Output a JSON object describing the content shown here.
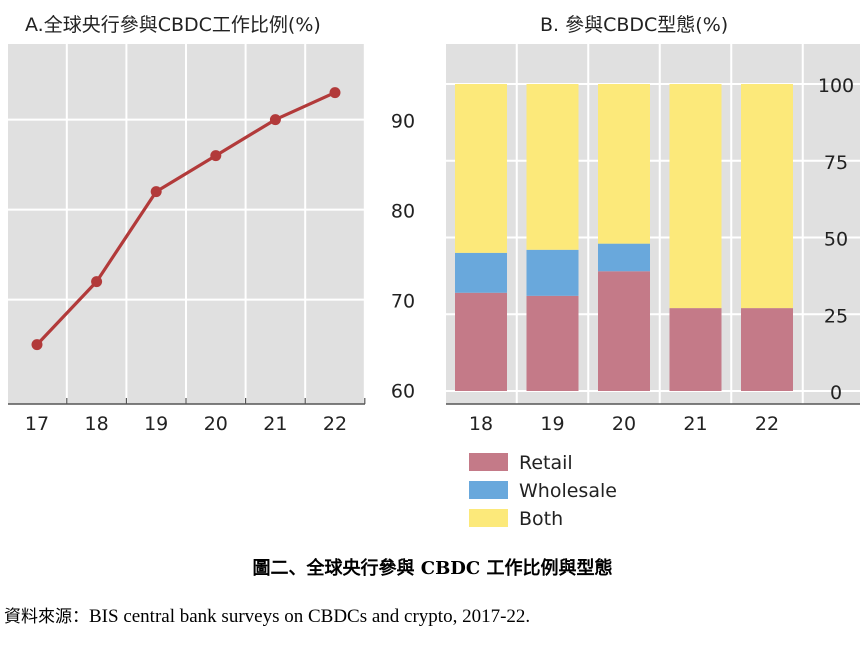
{
  "chart_data": [
    {
      "type": "line",
      "title": "A.全球央行參與CBDC工作比例(%)",
      "x": [
        "17",
        "18",
        "19",
        "20",
        "21",
        "22"
      ],
      "series": [
        {
          "values": [
            65,
            72,
            82,
            86,
            90,
            93
          ],
          "color": "#b23a3a"
        }
      ],
      "ylim": [
        60,
        96
      ],
      "yticks": [
        60,
        70,
        80,
        90
      ],
      "y_axis_side": "right",
      "grid": true,
      "background": "#e0e0e0"
    },
    {
      "type": "bar",
      "stacked": true,
      "title": "B. 參與CBDC型態(%)",
      "categories": [
        "18",
        "19",
        "20",
        "21",
        "22"
      ],
      "series": [
        {
          "name": "Retail",
          "values": [
            32,
            31,
            39,
            27,
            27
          ],
          "color": "#c47a88"
        },
        {
          "name": "Wholesale",
          "values": [
            13,
            15,
            9,
            0,
            0
          ],
          "color": "#69a8dc"
        },
        {
          "name": "Both",
          "values": [
            55,
            54,
            52,
            73,
            73
          ],
          "color": "#fce97a"
        }
      ],
      "ylim": [
        0,
        100
      ],
      "yticks": [
        0,
        25,
        50,
        75,
        100
      ],
      "y_axis_side": "right",
      "legend": "bottom-left",
      "grid": true,
      "background": "#e0e0e0"
    }
  ],
  "caption": "圖二、全球央行參與 CBDC 工作比例與型態",
  "source": {
    "label": "資料來源：",
    "text": "BIS central bank surveys on CBDCs and crypto, 2017-22."
  }
}
